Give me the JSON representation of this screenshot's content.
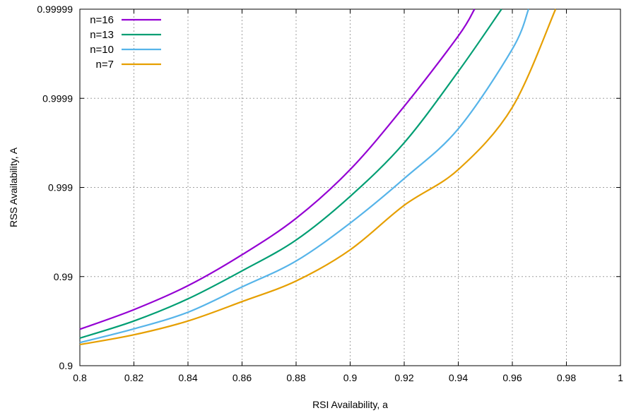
{
  "chart_data": {
    "type": "line",
    "xlabel": "RSI Availability, a",
    "ylabel": "RSS Availability, A",
    "xlim": [
      0.8,
      1.0
    ],
    "ylim_display": [
      "0.9",
      "0.99999"
    ],
    "y_scale": "nines",
    "x_ticks": [
      "0.8",
      "0.82",
      "0.84",
      "0.86",
      "0.88",
      "0.9",
      "0.92",
      "0.94",
      "0.96",
      "0.98",
      "1"
    ],
    "y_ticks": [
      "0.9",
      "0.99",
      "0.999",
      "0.9999",
      "0.99999"
    ],
    "grid": true,
    "legend_position": "top-left",
    "series": [
      {
        "name": "n=16",
        "color": "#9400d3",
        "x": [
          0.8,
          0.82,
          0.84,
          0.86,
          0.88,
          0.9,
          0.92,
          0.94,
          0.946
        ],
        "y": [
          0.961,
          0.9765,
          0.98735,
          0.99431,
          0.99778,
          0.99937,
          0.999877,
          0.99998,
          0.99999
        ]
      },
      {
        "name": "n=13",
        "color": "#009e73",
        "x": [
          0.8,
          0.82,
          0.84,
          0.86,
          0.88,
          0.9,
          0.92,
          0.94,
          0.956
        ],
        "y": [
          0.951,
          0.9685,
          0.98222,
          0.99137,
          0.99611,
          0.99874,
          0.999685,
          0.99995,
          0.99999
        ]
      },
      {
        "name": "n=10",
        "color": "#56b4e9",
        "x": [
          0.8,
          0.82,
          0.84,
          0.86,
          0.88,
          0.9,
          0.92,
          0.94,
          0.96,
          0.966
        ],
        "y": [
          0.945,
          0.9614,
          0.97489,
          0.98693,
          0.99331,
          0.99749,
          0.999206,
          0.99978,
          0.999972,
          0.99999
        ]
      },
      {
        "name": "n=7",
        "color": "#e69f00",
        "x": [
          0.8,
          0.82,
          0.84,
          0.86,
          0.88,
          0.9,
          0.92,
          0.94,
          0.96,
          0.976
        ],
        "y": [
          0.942,
          0.955,
          0.9685,
          0.98091,
          0.98879,
          0.99499,
          0.998415,
          0.99937,
          0.999874,
          0.99999
        ]
      }
    ]
  }
}
